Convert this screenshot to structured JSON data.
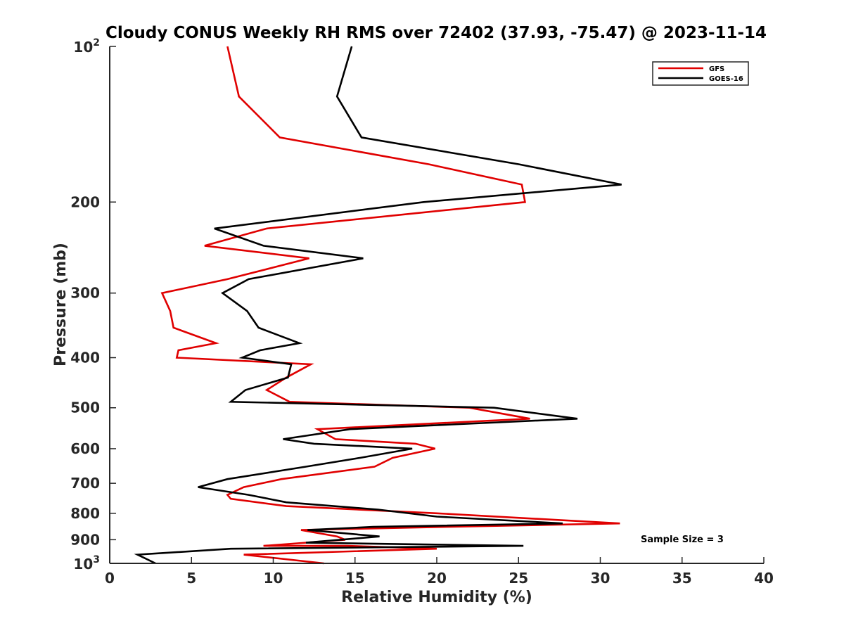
{
  "chart_data": {
    "type": "line",
    "title": "Cloudy CONUS Weekly RH RMS over 72402 (37.93, -75.47) @ 2023-11-14",
    "xlabel": "Relative Humidity (%)",
    "ylabel": "Pressure (mb)",
    "xlim": [
      0,
      40
    ],
    "ylim": [
      100,
      1000
    ],
    "y_scale": "log",
    "y_reversed": true,
    "grid": false,
    "legend_position": "top-right",
    "x_ticks": [
      "0",
      "5",
      "10",
      "15",
      "20",
      "25",
      "30",
      "35",
      "40"
    ],
    "y_ticks": [
      {
        "value": 100,
        "base": "10",
        "exp": "2"
      },
      {
        "value": 200,
        "label": "200"
      },
      {
        "value": 300,
        "label": "300"
      },
      {
        "value": 400,
        "label": "400"
      },
      {
        "value": 500,
        "label": "500"
      },
      {
        "value": 600,
        "label": "600"
      },
      {
        "value": 700,
        "label": "700"
      },
      {
        "value": 800,
        "label": "800"
      },
      {
        "value": 900,
        "label": "900"
      },
      {
        "value": 1000,
        "base": "10",
        "exp": "3"
      }
    ],
    "annotation": "Sample Size = 3",
    "series": [
      {
        "name": "GFS",
        "color": "#e00000",
        "points": [
          {
            "x": 7.2,
            "y": 100
          },
          {
            "x": 7.9,
            "y": 125
          },
          {
            "x": 10.4,
            "y": 150
          },
          {
            "x": 19.5,
            "y": 169
          },
          {
            "x": 25.2,
            "y": 185
          },
          {
            "x": 25.4,
            "y": 200
          },
          {
            "x": 9.6,
            "y": 225
          },
          {
            "x": 5.8,
            "y": 243
          },
          {
            "x": 12.2,
            "y": 257
          },
          {
            "x": 7.2,
            "y": 282
          },
          {
            "x": 3.2,
            "y": 300
          },
          {
            "x": 3.7,
            "y": 325
          },
          {
            "x": 3.9,
            "y": 350
          },
          {
            "x": 6.5,
            "y": 375
          },
          {
            "x": 4.2,
            "y": 387
          },
          {
            "x": 4.1,
            "y": 400
          },
          {
            "x": 12.3,
            "y": 412
          },
          {
            "x": 10.8,
            "y": 437
          },
          {
            "x": 9.6,
            "y": 462
          },
          {
            "x": 11.0,
            "y": 487
          },
          {
            "x": 22.0,
            "y": 500
          },
          {
            "x": 25.7,
            "y": 525
          },
          {
            "x": 12.7,
            "y": 550
          },
          {
            "x": 13.8,
            "y": 575
          },
          {
            "x": 18.7,
            "y": 587
          },
          {
            "x": 19.9,
            "y": 600
          },
          {
            "x": 17.3,
            "y": 625
          },
          {
            "x": 16.2,
            "y": 650
          },
          {
            "x": 10.5,
            "y": 687
          },
          {
            "x": 8.2,
            "y": 712
          },
          {
            "x": 7.2,
            "y": 737
          },
          {
            "x": 7.4,
            "y": 750
          },
          {
            "x": 10.8,
            "y": 775
          },
          {
            "x": 20.0,
            "y": 800
          },
          {
            "x": 31.2,
            "y": 837
          },
          {
            "x": 20.6,
            "y": 850
          },
          {
            "x": 11.7,
            "y": 862
          },
          {
            "x": 13.9,
            "y": 887
          },
          {
            "x": 14.4,
            "y": 900
          },
          {
            "x": 9.4,
            "y": 925
          },
          {
            "x": 14.5,
            "y": 925
          },
          {
            "x": 20.0,
            "y": 937
          },
          {
            "x": 8.2,
            "y": 962
          },
          {
            "x": 13.1,
            "y": 1000
          }
        ]
      },
      {
        "name": "GOES-16",
        "color": "#000000",
        "points": [
          {
            "x": 14.8,
            "y": 100
          },
          {
            "x": 13.9,
            "y": 125
          },
          {
            "x": 15.4,
            "y": 150
          },
          {
            "x": 25.0,
            "y": 169
          },
          {
            "x": 31.3,
            "y": 185
          },
          {
            "x": 19.2,
            "y": 200
          },
          {
            "x": 6.4,
            "y": 225
          },
          {
            "x": 9.4,
            "y": 243
          },
          {
            "x": 15.5,
            "y": 257
          },
          {
            "x": 8.5,
            "y": 282
          },
          {
            "x": 6.9,
            "y": 300
          },
          {
            "x": 8.4,
            "y": 325
          },
          {
            "x": 9.1,
            "y": 350
          },
          {
            "x": 11.6,
            "y": 375
          },
          {
            "x": 9.2,
            "y": 387
          },
          {
            "x": 8.1,
            "y": 400
          },
          {
            "x": 11.1,
            "y": 412
          },
          {
            "x": 10.9,
            "y": 437
          },
          {
            "x": 8.3,
            "y": 462
          },
          {
            "x": 7.4,
            "y": 487
          },
          {
            "x": 23.5,
            "y": 500
          },
          {
            "x": 28.6,
            "y": 525
          },
          {
            "x": 14.7,
            "y": 550
          },
          {
            "x": 10.6,
            "y": 575
          },
          {
            "x": 12.5,
            "y": 587
          },
          {
            "x": 18.5,
            "y": 600
          },
          {
            "x": 15.3,
            "y": 625
          },
          {
            "x": 12.0,
            "y": 650
          },
          {
            "x": 7.2,
            "y": 687
          },
          {
            "x": 5.4,
            "y": 712
          },
          {
            "x": 8.5,
            "y": 737
          },
          {
            "x": 10.8,
            "y": 762
          },
          {
            "x": 16.4,
            "y": 787
          },
          {
            "x": 20.0,
            "y": 812
          },
          {
            "x": 27.7,
            "y": 837
          },
          {
            "x": 16.1,
            "y": 850
          },
          {
            "x": 12.1,
            "y": 862
          },
          {
            "x": 16.5,
            "y": 887
          },
          {
            "x": 12.0,
            "y": 912
          },
          {
            "x": 25.3,
            "y": 925
          },
          {
            "x": 7.4,
            "y": 937
          },
          {
            "x": 1.7,
            "y": 962
          },
          {
            "x": 2.8,
            "y": 1000
          }
        ]
      }
    ]
  }
}
